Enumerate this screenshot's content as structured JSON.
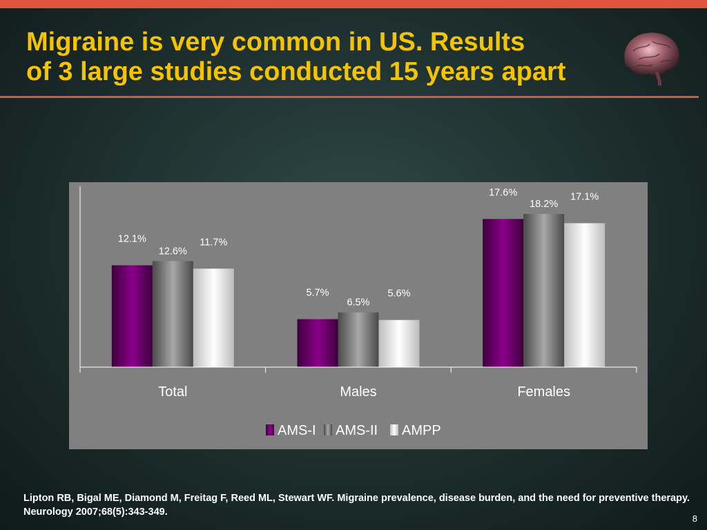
{
  "slide": {
    "title_line1": "Migraine is very common in US. Results",
    "title_line2": "of 3 large studies conducted 15 years apart",
    "citation": "Lipton RB, Bigal ME, Diamond M, Freitag F, Reed ML, Stewart WF. Migraine prevalence, disease burden, and the need for preventive therapy. Neurology 2007;68(5):343-349.",
    "page_number": "8",
    "brain_icon": "brain-icon"
  },
  "colors": {
    "title": "#f5c400",
    "accent_rule": "#e0533d",
    "plot_background": "#808080",
    "AMS-I": "#6b006b",
    "AMS-II": "#8a8a8a",
    "AMPP": "#f0f0f0"
  },
  "chart_data": {
    "type": "bar",
    "categories": [
      "Total",
      "Males",
      "Females"
    ],
    "series": [
      {
        "name": "AMS-I",
        "values": [
          12.1,
          5.7,
          17.6
        ],
        "labels": [
          "12.1%",
          "5.7%",
          "17.6%"
        ]
      },
      {
        "name": "AMS-II",
        "values": [
          12.6,
          6.5,
          18.2
        ],
        "labels": [
          "12.6%",
          "6.5%",
          "18.2%"
        ]
      },
      {
        "name": "AMPP",
        "values": [
          11.7,
          5.6,
          17.1
        ],
        "labels": [
          "11.7%",
          "5.6%",
          "17.1%"
        ]
      }
    ],
    "title": "",
    "xlabel": "",
    "ylabel": "",
    "ylim": [
      0,
      20
    ],
    "legend_position": "bottom",
    "grid": false
  }
}
